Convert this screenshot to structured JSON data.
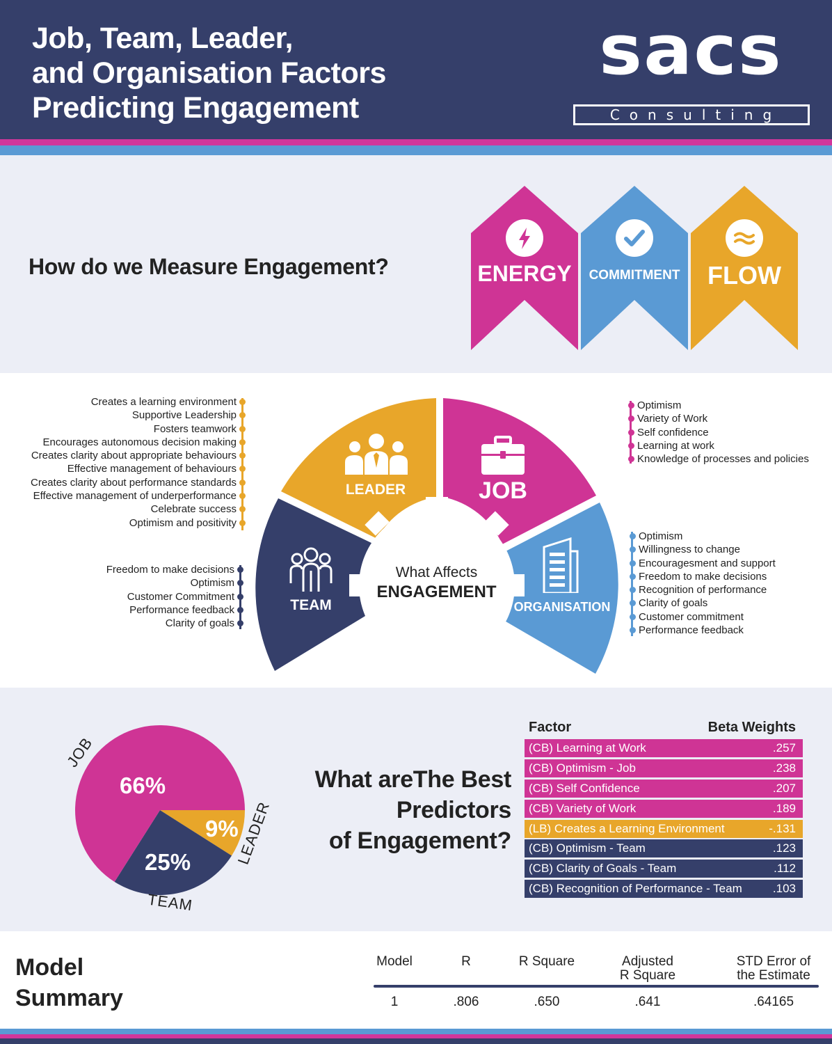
{
  "header": {
    "title_lines": [
      "Job, Team, Leader,",
      "and Organisation Factors",
      "Predicting Engagement"
    ],
    "logo_main": "sacs",
    "logo_sub": "Consulting"
  },
  "measure": {
    "heading": "How do we Measure Engagement?",
    "banners": [
      {
        "label": "ENERGY",
        "icon": "lightning-icon",
        "color": "#cf3495"
      },
      {
        "label": "COMMITMENT",
        "icon": "checkmark-icon",
        "color": "#5a9ad4"
      },
      {
        "label": "FLOW",
        "icon": "waves-icon",
        "color": "#e8a62a"
      }
    ]
  },
  "affects": {
    "center_line1": "What Affects",
    "center_line2": "ENGAGEMENT",
    "segments": {
      "leader": {
        "label": "LEADER",
        "color": "#e8a62a",
        "icon": "people-group-icon"
      },
      "job": {
        "label": "JOB",
        "color": "#cf3495",
        "icon": "briefcase-icon"
      },
      "team": {
        "label": "TEAM",
        "color": "#353f6a",
        "icon": "team-people-icon"
      },
      "organisation": {
        "label": "ORGANISATION",
        "color": "#5a9ad4",
        "icon": "building-icon"
      }
    },
    "leader_items": [
      "Creates a learning environment",
      "Supportive Leadership",
      "Fosters teamwork",
      "Encourages autonomous decision making",
      "Creates clarity about appropriate behaviours",
      "Effective management of behaviours",
      "Creates clarity about performance standards",
      "Effective management of underperformance",
      "Celebrate success",
      "Optimism and positivity"
    ],
    "team_items": [
      "Freedom to make decisions",
      "Optimism",
      "Customer Commitment",
      "Performance feedback",
      "Clarity of goals"
    ],
    "job_items": [
      "Optimism",
      "Variety of Work",
      "Self confidence",
      "Learning at work",
      "Knowledge of processes and policies"
    ],
    "organisation_items": [
      "Optimism",
      "Willingness to change",
      "Encouragesment and support",
      "Freedom to make decisions",
      "Recognition of performance",
      "Clarity of goals",
      "Customer commitment",
      "Performance feedback"
    ]
  },
  "pie": {
    "slices": [
      {
        "name": "JOB",
        "value": 66,
        "label": "66%",
        "color": "#cf3495"
      },
      {
        "name": "TEAM",
        "value": 25,
        "label": "25%",
        "color": "#353f6a"
      },
      {
        "name": "LEADER",
        "value": 9,
        "label": "9%",
        "color": "#e8a62a"
      }
    ]
  },
  "predictors": {
    "heading_lines": [
      "What areThe Best",
      "Predictors",
      "of Engagement?"
    ],
    "factor_header": "Factor",
    "beta_header": "Beta Weights",
    "rows": [
      {
        "factor": "(CB) Learning at Work",
        "beta": ".257",
        "color": "#cf3495"
      },
      {
        "factor": "(CB) Optimism - Job",
        "beta": ".238",
        "color": "#cf3495"
      },
      {
        "factor": "(CB) Self Confidence",
        "beta": ".207",
        "color": "#cf3495"
      },
      {
        "factor": "(CB) Variety of Work",
        "beta": ".189",
        "color": "#cf3495"
      },
      {
        "factor": "(LB) Creates a Learning Environment",
        "beta": "-.131",
        "color": "#e8a62a"
      },
      {
        "factor": "(CB) Optimism - Team",
        "beta": ".123",
        "color": "#353f6a"
      },
      {
        "factor": "(CB) Clarity of Goals - Team",
        "beta": ".112",
        "color": "#353f6a"
      },
      {
        "factor": "(CB) Recognition of Performance - Team",
        "beta": ".103",
        "color": "#353f6a"
      }
    ]
  },
  "summary": {
    "title_lines": [
      "Model",
      "Summary"
    ],
    "headers": [
      "Model",
      "R",
      "R Square",
      "Adjusted\nR Square",
      "STD Error of\nthe Estimate"
    ],
    "values": [
      "1",
      ".806",
      ".650",
      ".641",
      ".64165"
    ]
  },
  "colors": {
    "navy": "#353f6a",
    "pink": "#cf3495",
    "blue": "#5a9ad4",
    "gold": "#e8a62a",
    "background": "#eceef6"
  }
}
